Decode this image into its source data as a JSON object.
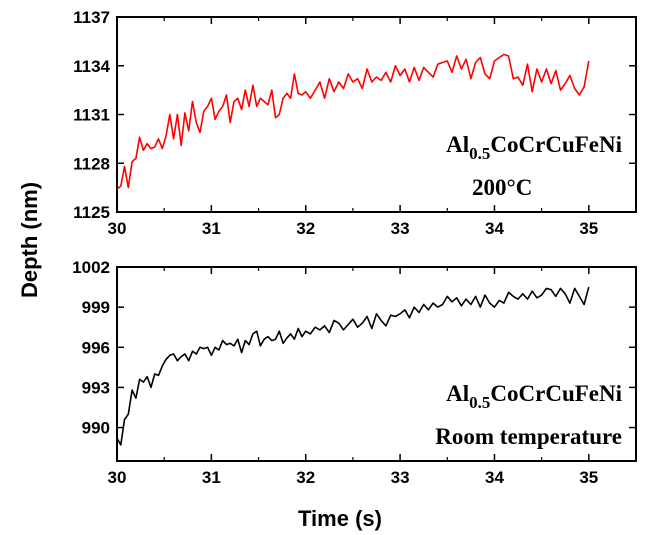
{
  "chart_data": [
    {
      "type": "line",
      "xlim": [
        30,
        35.5
      ],
      "ylim": [
        1125,
        1137
      ],
      "x_ticks": [
        "30",
        "31",
        "32",
        "33",
        "34",
        "35"
      ],
      "y_ticks": [
        "1125",
        "1128",
        "1131",
        "1134",
        "1137"
      ],
      "annotation_lines": [
        {
          "base": "Al",
          "sub": "0.5",
          "rest": "CoCrCuFeNi"
        },
        {
          "text": "200°C"
        }
      ],
      "series": [
        {
          "color": "#ff0000",
          "x": [
            30.0,
            30.04,
            30.08,
            30.12,
            30.16,
            30.2,
            30.24,
            30.28,
            30.32,
            30.36,
            30.4,
            30.44,
            30.48,
            30.52,
            30.56,
            30.6,
            30.64,
            30.68,
            30.72,
            30.76,
            30.8,
            30.84,
            30.88,
            30.92,
            30.96,
            31.0,
            31.04,
            31.08,
            31.12,
            31.16,
            31.2,
            31.24,
            31.28,
            31.32,
            31.36,
            31.4,
            31.44,
            31.48,
            31.52,
            31.56,
            31.6,
            31.64,
            31.68,
            31.72,
            31.76,
            31.8,
            31.84,
            31.88,
            31.92,
            31.96,
            32.0,
            32.05,
            32.1,
            32.15,
            32.2,
            32.25,
            32.3,
            32.35,
            32.4,
            32.45,
            32.5,
            32.55,
            32.6,
            32.65,
            32.7,
            32.75,
            32.8,
            32.85,
            32.9,
            32.95,
            33.0,
            33.05,
            33.1,
            33.15,
            33.2,
            33.25,
            33.3,
            33.35,
            33.4,
            33.45,
            33.5,
            33.55,
            33.6,
            33.65,
            33.7,
            33.75,
            33.8,
            33.85,
            33.9,
            33.95,
            34.0,
            34.05,
            34.1,
            34.15,
            34.2,
            34.25,
            34.3,
            34.35,
            34.4,
            34.45,
            34.5,
            34.55,
            34.6,
            34.65,
            34.7,
            34.75,
            34.8,
            34.85,
            34.9,
            34.95,
            35.0
          ],
          "y": [
            1126.4,
            1126.6,
            1127.8,
            1126.5,
            1128.1,
            1128.3,
            1129.6,
            1128.8,
            1129.2,
            1128.9,
            1129.0,
            1129.5,
            1128.9,
            1129.7,
            1131.0,
            1129.5,
            1131.0,
            1129.1,
            1131.1,
            1130.0,
            1131.8,
            1130.5,
            1129.9,
            1131.2,
            1131.5,
            1132.0,
            1130.7,
            1131.2,
            1131.5,
            1132.2,
            1130.5,
            1131.8,
            1132.0,
            1131.3,
            1132.5,
            1131.5,
            1132.8,
            1131.5,
            1132.0,
            1131.8,
            1131.6,
            1132.5,
            1130.8,
            1131.0,
            1132.0,
            1132.3,
            1132.0,
            1133.5,
            1132.3,
            1132.2,
            1132.4,
            1132.0,
            1132.5,
            1133.0,
            1132.0,
            1133.2,
            1132.4,
            1133.0,
            1132.6,
            1133.5,
            1133.0,
            1133.2,
            1132.6,
            1133.8,
            1133.0,
            1133.3,
            1133.1,
            1133.6,
            1133.0,
            1134.0,
            1133.4,
            1133.8,
            1133.0,
            1133.9,
            1133.1,
            1133.9,
            1133.6,
            1133.3,
            1134.1,
            1134.2,
            1134.3,
            1133.6,
            1134.6,
            1133.8,
            1134.4,
            1133.2,
            1134.2,
            1134.5,
            1133.5,
            1133.2,
            1134.3,
            1134.5,
            1134.7,
            1134.6,
            1133.2,
            1133.3,
            1132.8,
            1134.1,
            1132.4,
            1133.8,
            1133.0,
            1133.8,
            1132.9,
            1133.7,
            1132.5,
            1132.9,
            1133.4,
            1132.6,
            1132.2,
            1132.7,
            1134.3
          ]
        }
      ]
    },
    {
      "type": "line",
      "xlim": [
        30,
        35.5
      ],
      "ylim": [
        987.5,
        1002
      ],
      "x_ticks": [
        "30",
        "31",
        "32",
        "33",
        "34",
        "35"
      ],
      "y_ticks": [
        "990",
        "993",
        "996",
        "999",
        "1002"
      ],
      "xlabel": "Time (s)",
      "annotation_lines": [
        {
          "base": "Al",
          "sub": "0.5",
          "rest": "CoCrCuFeNi"
        },
        {
          "text": "Room temperature"
        }
      ],
      "series": [
        {
          "color": "#000000",
          "x": [
            30.0,
            30.04,
            30.08,
            30.12,
            30.16,
            30.2,
            30.24,
            30.28,
            30.32,
            30.36,
            30.4,
            30.44,
            30.48,
            30.52,
            30.56,
            30.6,
            30.64,
            30.68,
            30.72,
            30.76,
            30.8,
            30.84,
            30.88,
            30.92,
            30.96,
            31.0,
            31.04,
            31.08,
            31.12,
            31.16,
            31.2,
            31.24,
            31.28,
            31.32,
            31.36,
            31.4,
            31.44,
            31.48,
            31.52,
            31.56,
            31.6,
            31.64,
            31.68,
            31.72,
            31.76,
            31.8,
            31.84,
            31.88,
            31.92,
            31.96,
            32.0,
            32.05,
            32.1,
            32.15,
            32.2,
            32.25,
            32.3,
            32.35,
            32.4,
            32.45,
            32.5,
            32.55,
            32.6,
            32.65,
            32.7,
            32.75,
            32.8,
            32.85,
            32.9,
            32.95,
            33.0,
            33.05,
            33.1,
            33.15,
            33.2,
            33.25,
            33.3,
            33.35,
            33.4,
            33.45,
            33.5,
            33.55,
            33.6,
            33.65,
            33.7,
            33.75,
            33.8,
            33.85,
            33.9,
            33.95,
            34.0,
            34.05,
            34.1,
            34.15,
            34.2,
            34.25,
            34.3,
            34.35,
            34.4,
            34.45,
            34.5,
            34.55,
            34.6,
            34.65,
            34.7,
            34.75,
            34.8,
            34.85,
            34.9,
            34.95,
            35.0
          ],
          "y": [
            989.2,
            988.7,
            990.6,
            991.0,
            992.8,
            992.2,
            993.6,
            993.4,
            993.8,
            993.0,
            994.0,
            993.9,
            994.6,
            995.1,
            995.4,
            995.5,
            995.0,
            995.3,
            995.5,
            995.0,
            995.7,
            995.5,
            996.0,
            995.9,
            996.0,
            995.4,
            996.0,
            995.8,
            996.5,
            996.2,
            996.3,
            996.1,
            996.6,
            995.6,
            996.5,
            996.2,
            997.0,
            997.2,
            996.1,
            996.6,
            996.8,
            996.5,
            996.6,
            997.2,
            996.3,
            996.7,
            997.0,
            996.6,
            997.4,
            996.8,
            997.2,
            997.0,
            997.5,
            997.3,
            997.6,
            997.1,
            998.0,
            997.8,
            997.3,
            997.7,
            998.1,
            997.5,
            997.8,
            998.3,
            997.4,
            998.5,
            998.0,
            997.6,
            998.4,
            998.3,
            998.5,
            998.8,
            998.2,
            999.0,
            998.6,
            999.2,
            998.8,
            999.3,
            999.0,
            999.2,
            999.8,
            999.4,
            999.7,
            999.1,
            999.6,
            999.2,
            999.8,
            999.0,
            999.9,
            999.3,
            999.0,
            999.5,
            999.3,
            1000.1,
            999.8,
            999.6,
            1000.0,
            999.6,
            1000.2,
            999.7,
            999.9,
            1000.4,
            1000.3,
            999.8,
            1000.4,
            1000.0,
            999.3,
            1000.4,
            999.8,
            999.2,
            1000.5
          ]
        }
      ]
    }
  ],
  "ylabel": "Depth (nm)"
}
